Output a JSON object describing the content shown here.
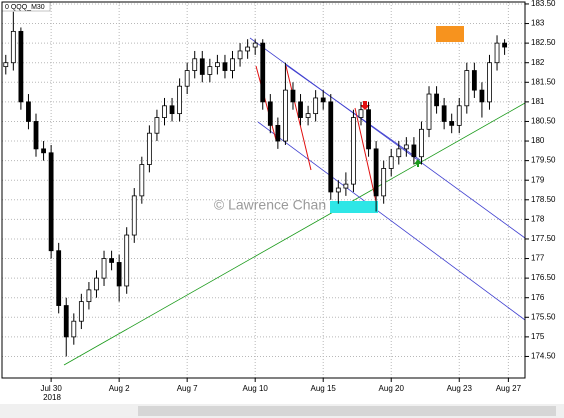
{
  "chart_data": {
    "type": "candlestick",
    "symbol_label": "0 QQQ_M30",
    "watermark": "© Lawrence Chan",
    "year_label": "2018",
    "x": [
      0,
      1,
      2,
      3,
      4,
      5,
      6,
      7,
      8,
      9,
      10,
      11,
      12,
      13,
      14,
      15,
      16,
      17,
      18,
      19,
      20,
      21,
      22,
      23,
      24,
      25,
      26,
      27,
      28,
      29,
      30,
      31,
      32,
      33,
      34,
      35,
      36,
      37,
      38,
      39,
      40,
      41,
      42,
      43,
      44,
      45,
      46,
      47,
      48,
      49,
      50,
      51,
      52,
      53,
      54,
      55,
      56,
      57,
      58,
      59,
      60,
      61,
      62,
      63,
      64,
      65,
      66
    ],
    "open": [
      181.9,
      182.0,
      182.8,
      181.0,
      180.5,
      179.8,
      179.7,
      177.2,
      175.8,
      175.0,
      175.4,
      175.9,
      176.2,
      176.5,
      177.0,
      176.9,
      176.3,
      177.6,
      178.6,
      179.4,
      180.2,
      180.6,
      180.9,
      180.7,
      181.4,
      181.8,
      182.1,
      181.7,
      181.9,
      182.0,
      181.8,
      182.1,
      182.3,
      182.4,
      182.5,
      181.0,
      180.4,
      180.0,
      181.3,
      181.0,
      180.6,
      180.7,
      181.1,
      181.0,
      178.7,
      178.8,
      178.9,
      180.6,
      180.8,
      179.8,
      178.6,
      179.3,
      179.6,
      179.8,
      179.9,
      179.6,
      180.3,
      181.2,
      180.9,
      180.5,
      180.4,
      180.9,
      181.8,
      181.3,
      181.0,
      182.0,
      182.5
    ],
    "high": [
      182.2,
      183.3,
      182.9,
      181.2,
      180.7,
      180.0,
      179.9,
      177.4,
      176.0,
      175.6,
      176.1,
      176.4,
      176.7,
      177.2,
      177.2,
      177.1,
      177.8,
      178.8,
      179.6,
      180.4,
      180.8,
      181.1,
      181.1,
      181.6,
      182.0,
      182.3,
      182.3,
      182.1,
      182.2,
      182.2,
      182.3,
      182.5,
      182.6,
      182.6,
      182.6,
      181.2,
      180.6,
      182.0,
      181.5,
      181.2,
      180.9,
      181.3,
      181.3,
      181.2,
      179.0,
      179.2,
      180.8,
      181.0,
      181.0,
      180.0,
      179.5,
      179.8,
      180.0,
      180.1,
      180.1,
      180.5,
      181.4,
      181.4,
      181.1,
      180.7,
      181.1,
      182.0,
      182.0,
      181.5,
      182.2,
      182.7,
      182.6
    ],
    "low": [
      181.7,
      181.8,
      180.8,
      180.3,
      179.6,
      179.5,
      177.0,
      175.6,
      174.5,
      174.8,
      175.2,
      175.7,
      176.0,
      176.3,
      176.7,
      175.9,
      176.1,
      177.4,
      178.4,
      179.2,
      180.0,
      180.4,
      180.5,
      180.5,
      181.2,
      181.6,
      181.5,
      181.5,
      181.7,
      181.6,
      181.6,
      181.9,
      182.1,
      182.2,
      180.8,
      180.2,
      179.8,
      179.9,
      180.8,
      180.4,
      180.4,
      180.5,
      180.8,
      178.5,
      178.4,
      178.6,
      178.7,
      180.4,
      179.6,
      178.2,
      178.4,
      179.1,
      179.4,
      179.6,
      179.4,
      179.4,
      180.1,
      180.7,
      180.3,
      180.2,
      180.2,
      180.7,
      181.1,
      180.6,
      180.8,
      181.8,
      182.2
    ],
    "close": [
      182.0,
      182.8,
      181.0,
      180.5,
      179.8,
      179.7,
      177.2,
      175.8,
      175.0,
      175.4,
      175.9,
      176.2,
      176.5,
      177.0,
      176.9,
      176.3,
      177.6,
      178.6,
      179.4,
      180.2,
      180.6,
      180.9,
      180.7,
      181.4,
      181.8,
      182.1,
      181.7,
      181.9,
      182.0,
      181.8,
      182.1,
      182.3,
      182.4,
      182.5,
      181.0,
      180.4,
      180.0,
      181.3,
      181.0,
      180.6,
      180.7,
      181.1,
      181.0,
      178.7,
      178.8,
      178.9,
      180.6,
      180.8,
      179.8,
      178.6,
      179.3,
      179.6,
      179.8,
      179.9,
      179.6,
      180.3,
      181.2,
      180.9,
      180.5,
      180.4,
      180.9,
      181.8,
      181.3,
      181.0,
      182.0,
      182.5,
      182.4
    ],
    "up_color": "#ffffff",
    "down_color": "#000000",
    "wick_color": "#000000",
    "xlim": [
      -0.5,
      68.7
    ],
    "xticks": [
      {
        "value": 6,
        "label": "Jul 30"
      },
      {
        "value": 15,
        "label": "Aug 2"
      },
      {
        "value": 24,
        "label": "Aug 7"
      },
      {
        "value": 33,
        "label": "Aug 10"
      },
      {
        "value": 42,
        "label": "Aug 15"
      },
      {
        "value": 51,
        "label": "Aug 20"
      },
      {
        "value": 60,
        "label": "Aug 23"
      },
      {
        "value": 66.5,
        "label": "Aug 27"
      }
    ],
    "ylim": [
      173.95,
      183.55
    ],
    "yticks": [
      {
        "value": 183.5,
        "label": "183.50"
      },
      183,
      {
        "value": 182.5,
        "label": "182.50"
      },
      182,
      {
        "value": 181.5,
        "label": "181.50"
      },
      181,
      {
        "value": 180.5,
        "label": "180.50"
      },
      180,
      {
        "value": 179.5,
        "label": "179.50"
      },
      179,
      {
        "value": 178.5,
        "label": "178.50"
      },
      178,
      {
        "value": 177.5,
        "label": "177.50"
      },
      177,
      {
        "value": 176.5,
        "label": "176.50"
      },
      176,
      {
        "value": 175.5,
        "label": "175.50"
      },
      175,
      {
        "value": 174.5,
        "label": "174.50"
      }
    ],
    "grid": true
  }
}
